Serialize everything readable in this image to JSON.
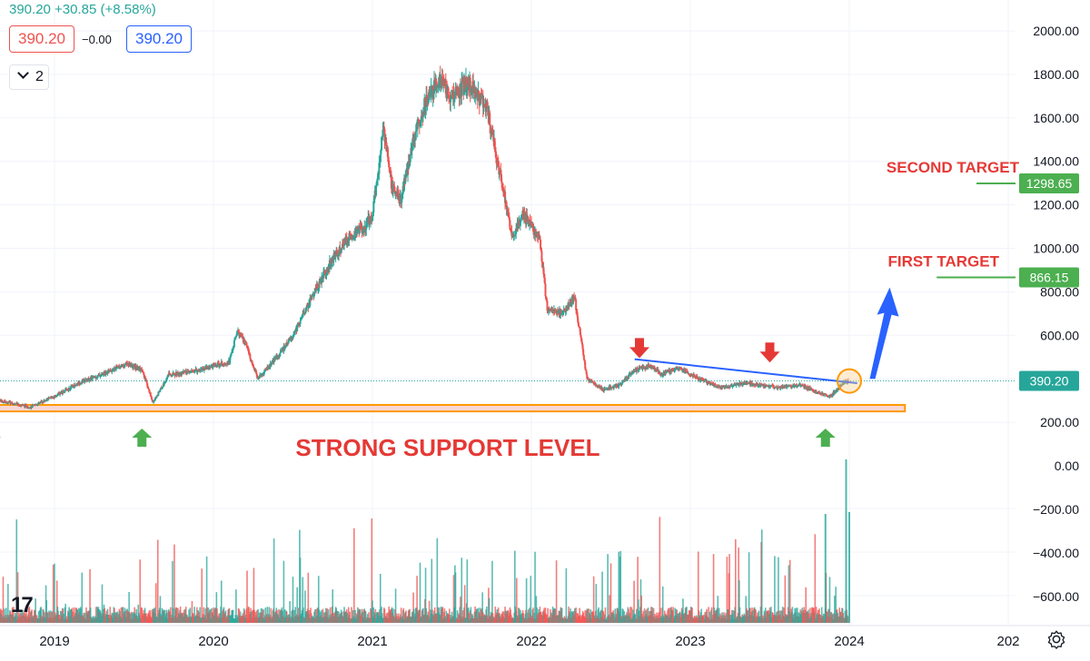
{
  "header": {
    "quote": "390.20 +30.85 (+8.58%)",
    "bid": "390.20",
    "spread": "−0.00",
    "ask": "390.20",
    "collapse_count": "2"
  },
  "colors": {
    "up": "#26a69a",
    "down": "#ef5350",
    "grid": "#f0f3fa",
    "trendline": "#2962ff",
    "target_line": "#4caf50",
    "support_fill": "#f8d7d4",
    "support_border": "#ff9800",
    "annotation_text": "#e53935",
    "arrow_up": "#4caf50",
    "arrow_down": "#e53935",
    "arrow_blue": "#2962ff"
  },
  "icons": [
    "tradingview-logo-icon",
    "settings-icon",
    "chevron-down-icon"
  ],
  "chart_data": {
    "type": "candlestick",
    "price_axis": {
      "ylim": [
        0,
        2000
      ],
      "ticks": [
        "200.00",
        "400.00",
        "600.00",
        "800.00",
        "1000.00",
        "1200.00",
        "1400.00",
        "1600.00",
        "1800.00",
        "2000.00"
      ]
    },
    "volume_axis": {
      "ticks": [
        "0.00",
        "−200.00",
        "−400.00",
        "−600.00"
      ]
    },
    "x_axis": {
      "range": [
        2018.55,
        2025.0
      ],
      "ticks": [
        {
          "t": 2019,
          "label": "2019"
        },
        {
          "t": 2020,
          "label": "2020"
        },
        {
          "t": 2021,
          "label": "2021"
        },
        {
          "t": 2022,
          "label": "2022"
        },
        {
          "t": 2023,
          "label": "2023"
        },
        {
          "t": 2024,
          "label": "2024"
        },
        {
          "t": 2025,
          "label": "202"
        }
      ]
    },
    "price_path": [
      [
        2018.55,
        390
      ],
      [
        2018.62,
        300
      ],
      [
        2018.72,
        290
      ],
      [
        2018.85,
        270
      ],
      [
        2019.0,
        320
      ],
      [
        2019.15,
        380
      ],
      [
        2019.3,
        420
      ],
      [
        2019.45,
        470
      ],
      [
        2019.55,
        440
      ],
      [
        2019.62,
        290
      ],
      [
        2019.72,
        420
      ],
      [
        2019.85,
        430
      ],
      [
        2020.0,
        460
      ],
      [
        2020.1,
        480
      ],
      [
        2020.15,
        620
      ],
      [
        2020.2,
        560
      ],
      [
        2020.28,
        400
      ],
      [
        2020.4,
        500
      ],
      [
        2020.5,
        600
      ],
      [
        2020.65,
        820
      ],
      [
        2020.75,
        950
      ],
      [
        2020.85,
        1050
      ],
      [
        2020.95,
        1100
      ],
      [
        2021.0,
        1150
      ],
      [
        2021.07,
        1550
      ],
      [
        2021.12,
        1300
      ],
      [
        2021.18,
        1220
      ],
      [
        2021.25,
        1480
      ],
      [
        2021.32,
        1650
      ],
      [
        2021.42,
        1780
      ],
      [
        2021.5,
        1700
      ],
      [
        2021.6,
        1760
      ],
      [
        2021.72,
        1650
      ],
      [
        2021.8,
        1350
      ],
      [
        2021.88,
        1050
      ],
      [
        2021.95,
        1150
      ],
      [
        2022.05,
        1050
      ],
      [
        2022.1,
        720
      ],
      [
        2022.2,
        700
      ],
      [
        2022.27,
        780
      ],
      [
        2022.35,
        400
      ],
      [
        2022.45,
        350
      ],
      [
        2022.55,
        370
      ],
      [
        2022.65,
        440
      ],
      [
        2022.75,
        460
      ],
      [
        2022.82,
        420
      ],
      [
        2022.92,
        450
      ],
      [
        2023.05,
        400
      ],
      [
        2023.2,
        360
      ],
      [
        2023.35,
        380
      ],
      [
        2023.55,
        360
      ],
      [
        2023.7,
        370
      ],
      [
        2023.82,
        330
      ],
      [
        2023.88,
        320
      ],
      [
        2023.92,
        350
      ],
      [
        2023.98,
        390
      ]
    ],
    "last_price": 390.2,
    "last_price_label": "390.20",
    "annotations": {
      "support_zone": {
        "from": 2018.6,
        "to": 2024.35,
        "low": 250,
        "high": 280,
        "label": "STRONG SUPPORT LEVEL"
      },
      "trendline": {
        "from": [
          2022.65,
          490
        ],
        "to": [
          2024.05,
          380
        ]
      },
      "first_target": {
        "value": 866.15,
        "label": "FIRST TARGET",
        "price_label": "866.15",
        "line_from": 2024.55
      },
      "second_target": {
        "value": 1298.65,
        "label": "SECOND TARGET",
        "price_label": "1298.65",
        "line_from": 2024.8
      },
      "up_arrows_at": [
        2018.6,
        2019.55,
        2023.85
      ],
      "down_arrows_at": [
        [
          2022.68,
          470
        ],
        [
          2023.5,
          450
        ]
      ],
      "breakout_circle": [
        2024.0,
        390
      ],
      "target_arrow": {
        "from": [
          2024.1,
          400
        ],
        "to": [
          2024.3,
          820
        ]
      }
    }
  }
}
